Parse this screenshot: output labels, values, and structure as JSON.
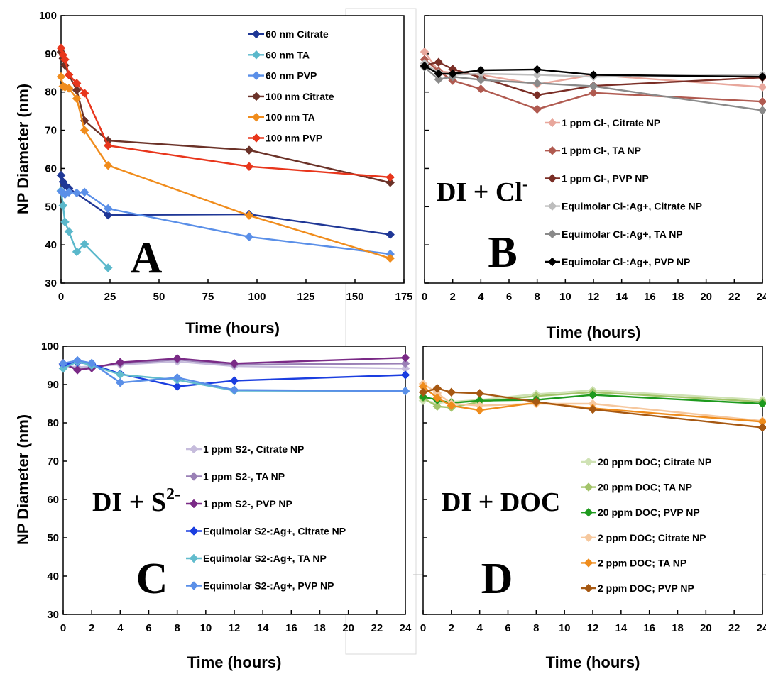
{
  "chart_data": [
    {
      "id": "A",
      "type": "line",
      "panel_letter": "A",
      "xlabel": "Time (hours)",
      "ylabel": "NP Diameter (nm)",
      "xlim": [
        0,
        175
      ],
      "ylim": [
        30,
        100
      ],
      "xticks": [
        0,
        25,
        50,
        75,
        100,
        125,
        150,
        175
      ],
      "yticks": [
        30,
        40,
        50,
        60,
        70,
        80,
        90,
        100
      ],
      "legend_position": "top-right",
      "series": [
        {
          "name": "60 nm Citrate",
          "color": "#1f3796",
          "x": [
            0,
            1,
            2,
            4,
            24,
            96,
            168
          ],
          "y": [
            58.2,
            56.5,
            55.6,
            54.8,
            47.8,
            48.0,
            42.7
          ]
        },
        {
          "name": "60 nm TA",
          "color": "#5ab8cb",
          "x": [
            0,
            1,
            2,
            4,
            8,
            12,
            24
          ],
          "y": [
            54.2,
            50.3,
            46.0,
            43.5,
            38.2,
            40.2,
            34.0
          ]
        },
        {
          "name": "60 nm PVP",
          "color": "#5a8fe8",
          "x": [
            0,
            1,
            2,
            4,
            8,
            12,
            24,
            96,
            168
          ],
          "y": [
            54.0,
            53.6,
            53.2,
            53.8,
            53.6,
            53.8,
            49.5,
            42.1,
            37.6
          ]
        },
        {
          "name": "100 nm Citrate",
          "color": "#6b3228",
          "x": [
            0,
            1,
            2,
            4,
            8,
            12,
            24,
            96,
            168
          ],
          "y": [
            90.5,
            88.8,
            87.0,
            84.5,
            80.5,
            72.5,
            67.3,
            64.8,
            56.3
          ]
        },
        {
          "name": "100 nm TA",
          "color": "#f08c1c",
          "x": [
            0,
            1,
            2,
            4,
            8,
            12,
            24,
            96,
            168
          ],
          "y": [
            84.0,
            81.5,
            81.3,
            81.0,
            78.3,
            70.0,
            60.8,
            47.7,
            36.5
          ]
        },
        {
          "name": "100 nm PVP",
          "color": "#e8361c",
          "x": [
            0,
            1,
            2,
            4,
            8,
            12,
            24,
            96,
            168
          ],
          "y": [
            91.5,
            89.7,
            88.5,
            84.5,
            82.3,
            79.7,
            66.0,
            60.5,
            57.7
          ]
        }
      ]
    },
    {
      "id": "B",
      "type": "line",
      "panel_letter": "B",
      "condition": "DI + Cl",
      "condition_sup": "-",
      "xlabel": "Time (hours)",
      "xlim": [
        0,
        24
      ],
      "ylim": [
        30,
        100
      ],
      "xticks": [
        0,
        2,
        4,
        6,
        8,
        10,
        12,
        14,
        16,
        18,
        20,
        22,
        24
      ],
      "legend_position": "center-right",
      "series": [
        {
          "name": "1 ppm Cl-, Citrate NP",
          "color": "#e8a79c",
          "x": [
            0,
            1,
            2,
            4,
            8,
            12,
            24
          ],
          "y": [
            90.5,
            85.5,
            85.0,
            84.5,
            82.0,
            84.5,
            81.3
          ]
        },
        {
          "name": "1 ppm Cl-, TA NP",
          "color": "#b05a50",
          "x": [
            0,
            1,
            2,
            4,
            8,
            12,
            24
          ],
          "y": [
            88.5,
            85.5,
            83.0,
            80.8,
            75.5,
            79.8,
            77.5
          ]
        },
        {
          "name": "1 ppm Cl-, PVP NP",
          "color": "#7a2e26",
          "x": [
            0,
            1,
            2,
            4,
            8,
            12,
            24
          ],
          "y": [
            87.0,
            87.8,
            86.0,
            83.8,
            79.2,
            81.6,
            83.8
          ]
        },
        {
          "name": "Equimolar Cl-:Ag+, Citrate NP",
          "color": "#bdbdbd",
          "x": [
            0,
            1,
            2,
            4,
            8,
            12,
            24
          ],
          "y": [
            87.5,
            85.0,
            84.5,
            84.8,
            84.5,
            84.0,
            84.5
          ]
        },
        {
          "name": "Equimolar Cl-:Ag+, TA NP",
          "color": "#8a8a8a",
          "x": [
            0,
            1,
            2,
            4,
            8,
            12,
            24
          ],
          "y": [
            86.5,
            83.3,
            84.0,
            83.2,
            82.3,
            81.5,
            75.2
          ]
        },
        {
          "name": "Equimolar Cl-:Ag+, PVP NP",
          "color": "#000000",
          "x": [
            0,
            1,
            2,
            4,
            8,
            12,
            24
          ],
          "y": [
            86.8,
            84.8,
            84.8,
            85.7,
            85.9,
            84.5,
            84.0
          ]
        }
      ]
    },
    {
      "id": "C",
      "type": "line",
      "panel_letter": "C",
      "condition": "DI + S",
      "condition_sup": "2-",
      "xlabel": "Time (hours)",
      "ylabel": "NP Diameter (nm)",
      "xlim": [
        0,
        24
      ],
      "ylim": [
        30,
        100
      ],
      "xticks": [
        0,
        2,
        4,
        6,
        8,
        10,
        12,
        14,
        16,
        18,
        20,
        22,
        24
      ],
      "yticks": [
        30,
        40,
        50,
        60,
        70,
        80,
        90,
        100
      ],
      "legend_position": "center-right",
      "series": [
        {
          "name": "1 ppm S2-, Citrate NP",
          "color": "#c6bcdc",
          "x": [
            0,
            1,
            2,
            4,
            8,
            12,
            24
          ],
          "y": [
            95.0,
            94.5,
            94.8,
            95.2,
            96.0,
            94.8,
            94.2
          ]
        },
        {
          "name": "1 ppm S2-, TA NP",
          "color": "#9a80b6",
          "x": [
            0,
            1,
            2,
            4,
            8,
            12,
            24
          ],
          "y": [
            95.2,
            94.0,
            94.5,
            95.5,
            96.5,
            95.2,
            95.5
          ]
        },
        {
          "name": "1 ppm S2-, PVP NP",
          "color": "#7a2a86",
          "x": [
            0,
            1,
            2,
            4,
            8,
            12,
            24
          ],
          "y": [
            95.5,
            93.8,
            94.3,
            95.8,
            96.8,
            95.5,
            97.0
          ]
        },
        {
          "name": "Equimolar S2-:Ag+, Citrate NP",
          "color": "#1b3ee0",
          "x": [
            0,
            1,
            2,
            4,
            8,
            12,
            24
          ],
          "y": [
            95.2,
            95.8,
            95.3,
            92.8,
            89.5,
            91.0,
            92.5
          ]
        },
        {
          "name": "Equimolar S2-:Ag+, TA NP",
          "color": "#62bccd",
          "x": [
            0,
            1,
            2,
            4,
            8,
            12,
            24
          ],
          "y": [
            94.2,
            96.0,
            95.0,
            92.6,
            91.2,
            88.4,
            88.3
          ]
        },
        {
          "name": "Equimolar S2-:Ag+, PVP NP",
          "color": "#5a8fe8",
          "x": [
            0,
            1,
            2,
            4,
            8,
            12,
            24
          ],
          "y": [
            95.5,
            96.3,
            95.6,
            90.5,
            91.8,
            88.6,
            88.3
          ]
        }
      ]
    },
    {
      "id": "D",
      "type": "line",
      "panel_letter": "D",
      "condition": "DI + DOC",
      "xlabel": "Time (hours)",
      "xlim": [
        0,
        24
      ],
      "ylim": [
        30,
        100
      ],
      "xticks": [
        0,
        2,
        4,
        6,
        8,
        10,
        12,
        14,
        16,
        18,
        20,
        22,
        24
      ],
      "legend_position": "bottom-right",
      "series": [
        {
          "name": "20 ppm DOC; Citrate NP",
          "color": "#cfe2b4",
          "x": [
            0,
            1,
            2,
            4,
            8,
            12,
            24
          ],
          "y": [
            85.8,
            85.2,
            85.5,
            86.0,
            87.5,
            88.5,
            86.0
          ]
        },
        {
          "name": "20 ppm DOC; TA NP",
          "color": "#a3c46a",
          "x": [
            0,
            1,
            2,
            4,
            8,
            12,
            24
          ],
          "y": [
            86.5,
            84.3,
            84.0,
            85.5,
            87.0,
            88.0,
            85.5
          ]
        },
        {
          "name": "20 ppm DOC; PVP NP",
          "color": "#1e9a1e",
          "x": [
            0,
            1,
            2,
            4,
            8,
            12,
            24
          ],
          "y": [
            86.8,
            86.0,
            85.2,
            85.8,
            86.0,
            87.3,
            85.0
          ]
        },
        {
          "name": "2 ppm DOC; Citrate NP",
          "color": "#f6c89e",
          "x": [
            0,
            1,
            2,
            4,
            8,
            12,
            24
          ],
          "y": [
            90.2,
            87.8,
            85.0,
            84.5,
            85.0,
            85.0,
            80.5
          ]
        },
        {
          "name": "2 ppm DOC; TA NP",
          "color": "#ef8c1c",
          "x": [
            0,
            1,
            2,
            4,
            8,
            12,
            24
          ],
          "y": [
            89.5,
            86.5,
            84.5,
            83.3,
            85.3,
            83.8,
            80.3
          ]
        },
        {
          "name": "2 ppm DOC; PVP NP",
          "color": "#a65812",
          "x": [
            0,
            1,
            2,
            4,
            8,
            12,
            24
          ],
          "y": [
            88.0,
            89.0,
            88.0,
            87.7,
            85.5,
            83.5,
            78.8
          ]
        }
      ]
    }
  ]
}
